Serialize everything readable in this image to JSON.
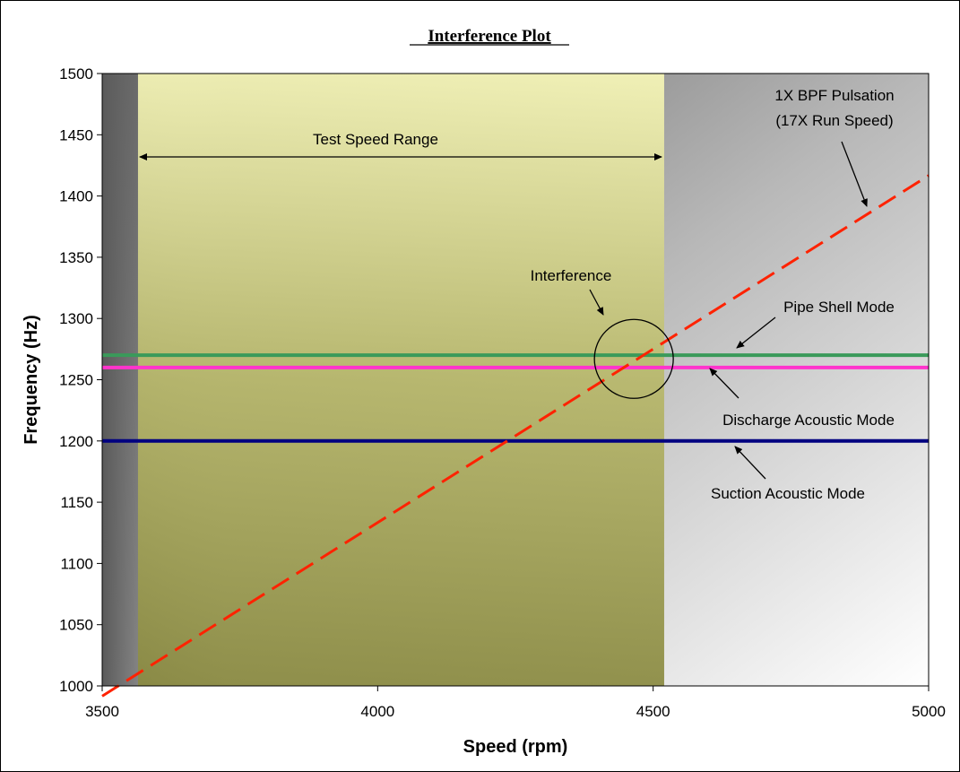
{
  "chart_data": {
    "type": "line",
    "title": "Interference Plot",
    "xlabel": "Speed (rpm)",
    "ylabel": "Frequency (Hz)",
    "xlim": [
      3500,
      5000
    ],
    "ylim": [
      1000,
      1500
    ],
    "x_ticks": [
      "3500",
      "4000",
      "4500",
      "5000"
    ],
    "y_ticks": [
      "1000",
      "1050",
      "1100",
      "1150",
      "1200",
      "1250",
      "1300",
      "1350",
      "1400",
      "1450",
      "1500"
    ],
    "shaded_regions": [
      {
        "x0": 3565,
        "x1": 4520,
        "color": "#d8d890",
        "label": "Test Speed Range"
      }
    ],
    "series": [
      {
        "name": "1X BPF Pulsation (17X Run Speed)",
        "style": "dashed",
        "color": "#ff2200",
        "x": [
          3500,
          5000
        ],
        "y": [
          991.7,
          1416.7
        ]
      },
      {
        "name": "Pipe Shell Mode",
        "style": "solid",
        "color": "#3a9a5a",
        "x": [
          3500,
          5000
        ],
        "y": [
          1270,
          1270
        ]
      },
      {
        "name": "Discharge Acoustic Mode",
        "style": "solid",
        "color": "#ff33cc",
        "x": [
          3500,
          5000
        ],
        "y": [
          1260,
          1260
        ]
      },
      {
        "name": "Suction Acoustic Mode",
        "style": "solid",
        "color": "#000080",
        "x": [
          3500,
          5000
        ],
        "y": [
          1200,
          1200
        ]
      }
    ],
    "annotations": [
      {
        "text": "Test Speed Range"
      },
      {
        "text": "1X BPF Pulsation"
      },
      {
        "text": "(17X Run Speed)"
      },
      {
        "text": "Interference"
      },
      {
        "text": "Pipe Shell Mode"
      },
      {
        "text": "Discharge Acoustic Mode"
      },
      {
        "text": "Suction Acoustic Mode"
      }
    ],
    "interference_center": {
      "x": 4465,
      "y": 1267
    }
  }
}
